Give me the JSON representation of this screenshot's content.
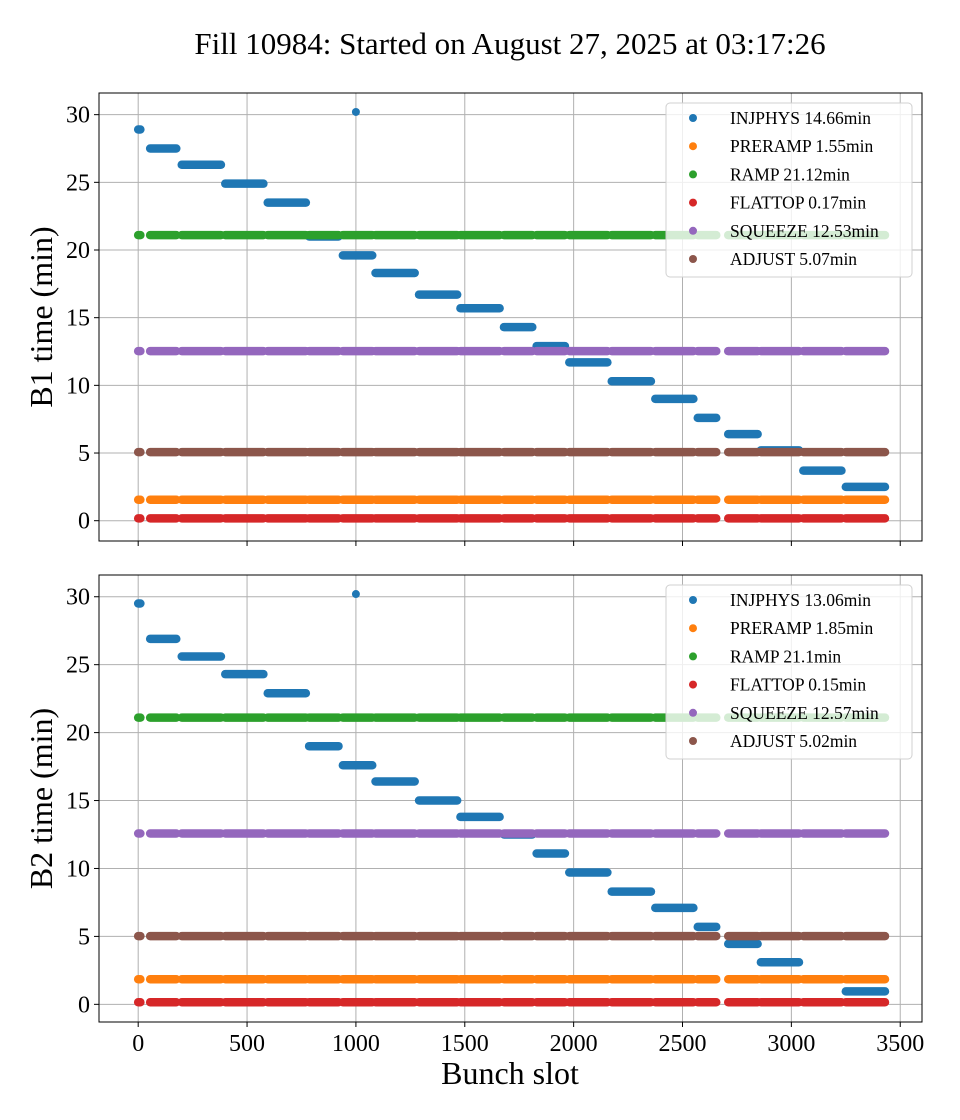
{
  "chart_data": {
    "type": "scatter",
    "title": "Fill 10984: Started on August 27, 2025 at 03:17:26",
    "xlabel": "Bunch slot",
    "xlim": [
      -180,
      3600
    ],
    "xticks": [
      0,
      500,
      1000,
      1500,
      2000,
      2500,
      3000,
      3500
    ],
    "yticks": [
      0,
      5,
      10,
      15,
      20,
      25,
      30
    ],
    "grid": true,
    "legend_placement": "top-right",
    "colors": {
      "INJPHYS": "#1f77b4",
      "PRERAMP": "#ff7f0e",
      "RAMP": "#2ca02c",
      "FLATTOP": "#d62728",
      "SQUEEZE": "#9467bd",
      "ADJUST": "#8c564b"
    },
    "segments": [
      [
        0,
        10
      ],
      [
        55,
        175
      ],
      [
        200,
        380
      ],
      [
        400,
        575
      ],
      [
        595,
        770
      ],
      [
        785,
        920
      ],
      [
        940,
        1075
      ],
      [
        1090,
        1270
      ],
      [
        1290,
        1465
      ],
      [
        1480,
        1660
      ],
      [
        1680,
        1810
      ],
      [
        1830,
        1960
      ],
      [
        1980,
        2155
      ],
      [
        2175,
        2355
      ],
      [
        2375,
        2550
      ],
      [
        2570,
        2655
      ],
      [
        2710,
        2845
      ],
      [
        2860,
        3035
      ],
      [
        3055,
        3230
      ],
      [
        3250,
        3430
      ]
    ],
    "panels": [
      {
        "ylabel": "B1 time (min)",
        "ylim": [
          -1.5,
          31.6
        ],
        "show_xticklabels": false,
        "legend": [
          "INJPHYS 14.66min",
          "PRERAMP 1.55min",
          "RAMP 21.12min",
          "FLATTOP 0.17min",
          "SQUEEZE 12.53min",
          "ADJUST 5.07min"
        ],
        "series": [
          {
            "name": "INJPHYS",
            "outlier": [
              1000,
              30.2
            ],
            "values": [
              28.9,
              27.5,
              26.3,
              24.9,
              23.5,
              21.0,
              19.6,
              18.3,
              16.7,
              15.7,
              14.3,
              12.9,
              11.7,
              10.3,
              9.0,
              7.6,
              6.4,
              5.2,
              3.7,
              2.5
            ]
          },
          {
            "name": "PRERAMP",
            "constant": 1.55
          },
          {
            "name": "RAMP",
            "constant": 21.1
          },
          {
            "name": "FLATTOP",
            "constant": 0.17
          },
          {
            "name": "SQUEEZE",
            "constant": 12.53
          },
          {
            "name": "ADJUST",
            "constant": 5.07
          }
        ]
      },
      {
        "ylabel": "B2 time (min)",
        "ylim": [
          -1.3,
          31.6
        ],
        "show_xticklabels": true,
        "legend": [
          "INJPHYS 13.06min",
          "PRERAMP 1.85min",
          "RAMP 21.1min",
          "FLATTOP 0.15min",
          "SQUEEZE 12.57min",
          "ADJUST 5.02min"
        ],
        "series": [
          {
            "name": "INJPHYS",
            "outlier": [
              1000,
              30.2
            ],
            "values": [
              29.5,
              26.9,
              25.6,
              24.3,
              22.9,
              19.0,
              17.6,
              16.4,
              15.0,
              13.8,
              12.5,
              11.1,
              9.7,
              8.3,
              7.1,
              5.7,
              4.45,
              3.1,
              null,
              0.95
            ]
          },
          {
            "name": "PRERAMP",
            "constant": 1.85
          },
          {
            "name": "RAMP",
            "constant": 21.1
          },
          {
            "name": "FLATTOP",
            "constant": 0.15
          },
          {
            "name": "SQUEEZE",
            "constant": 12.57
          },
          {
            "name": "ADJUST",
            "constant": 5.02
          }
        ]
      }
    ]
  }
}
